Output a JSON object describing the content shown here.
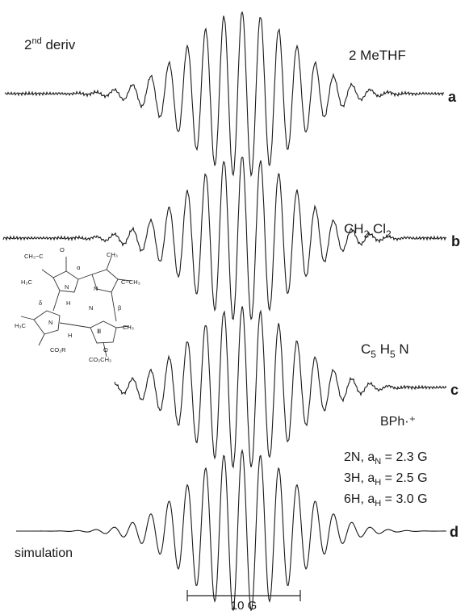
{
  "chart_data": {
    "type": "line",
    "title": "",
    "xlabel": "",
    "ylabel": "",
    "grid": false,
    "legend": "none",
    "derivative_label": "2nd deriv",
    "scale_bar": {
      "label": "10 G",
      "value_gauss": 10
    },
    "series": [
      {
        "name": "2 MeTHF",
        "panel": "a",
        "solvent": "2 MeTHF",
        "line_count": 13,
        "line_spacing_G": 1.62,
        "envelope_sigma_G": 4.6
      },
      {
        "name": "CH2 Cl2",
        "panel": "b",
        "solvent": "CH2 Cl2",
        "line_count": 13,
        "line_spacing_G": 1.62,
        "envelope_sigma_G": 4.6
      },
      {
        "name": "C5 H5 N",
        "panel": "c",
        "solvent": "C5 H5 N",
        "line_count": 13,
        "line_spacing_G": 1.62,
        "envelope_sigma_G": 4.6
      },
      {
        "name": "simulation",
        "panel": "d",
        "solvent": "simulation",
        "line_count": 13,
        "line_spacing_G": 1.62,
        "envelope_sigma_G": 4.6
      }
    ],
    "annotations": {
      "species": "BPh·⁺",
      "hyperfine": [
        "2N, aₙ = 2.3 G",
        "3H, aᴴ = 2.5 G",
        "6H, aᴴ = 3.0 G"
      ]
    }
  },
  "labels": {
    "deriv": "2nd deriv",
    "a_tag": "a",
    "b_tag": "b",
    "c_tag": "c",
    "d_tag": "d",
    "simulation": "simulation",
    "scale": "10 G",
    "species": "BPh·⁺",
    "hf1": "2N, a",
    "hf1_sub": "N",
    "hf1_val": " = 2.3 G",
    "hf2": "3H, a",
    "hf2_sub": "H",
    "hf2_val": " = 2.5 G",
    "hf3": "6H, a",
    "hf3_sub": "H",
    "hf3_val": " = 3.0 G",
    "solvent_a": "2 MeTHF",
    "solvent_b_pre": "CH",
    "solvent_b_s1": "2",
    "solvent_b_mid": " Cl",
    "solvent_b_s2": "2",
    "solvent_c_pre": "C",
    "solvent_c_s1": "5",
    "solvent_c_mid": " H",
    "solvent_c_s2": "5",
    "solvent_c_end": " N"
  }
}
